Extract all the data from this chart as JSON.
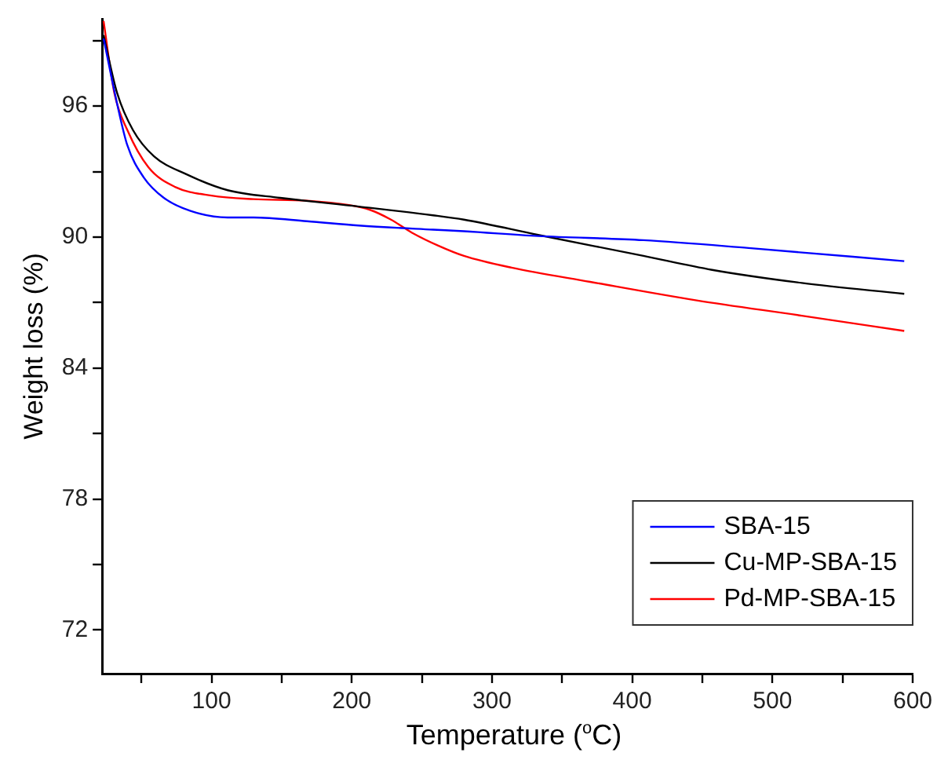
{
  "chart_data": {
    "type": "line",
    "xlabel": "Temperature ($^{o}$C)",
    "ylabel": "Weight loss (%)",
    "xlim": [
      22,
      600
    ],
    "ylim": [
      70,
      100
    ],
    "xticks": [
      {
        "value": 50,
        "label": null
      },
      100,
      {
        "value": 150,
        "label": null
      },
      200,
      {
        "value": 250,
        "label": null
      },
      300,
      {
        "value": 350,
        "label": null
      },
      400,
      {
        "value": 450,
        "label": null
      },
      500,
      {
        "value": 550,
        "label": null
      },
      600
    ],
    "yticks": [
      72,
      {
        "value": 75,
        "label": null
      },
      78,
      {
        "value": 81,
        "label": null
      },
      84,
      {
        "value": 87,
        "label": null
      },
      90,
      {
        "value": 93,
        "label": null
      },
      96,
      {
        "value": 99,
        "label": null
      }
    ],
    "grid": false,
    "legend": "bottom right",
    "marker": "none",
    "line_style": "solid",
    "series": [
      {
        "name": "SBA-15",
        "color": "#0000ff",
        "x": [
          23,
          32.7,
          40,
          51.5,
          66,
          85,
          111.5,
          130,
          168,
          205,
          258,
          280,
          333,
          408,
          483,
          594
        ],
        "values": [
          99.1,
          96.1,
          94.2,
          92.75,
          91.8,
          91.2,
          90.9,
          90.9,
          90.73,
          90.53,
          90.34,
          90.27,
          90.05,
          89.86,
          89.5,
          88.9
        ]
      },
      {
        "name": "Cu-MP-SBA-15",
        "color": "#000000",
        "x": [
          23,
          32.7,
          44,
          59,
          81.4,
          111.5,
          149,
          205,
          258,
          280,
          333,
          408,
          457,
          521,
          594
        ],
        "values": [
          99.25,
          96.6,
          94.9,
          93.7,
          92.9,
          92.15,
          91.8,
          91.4,
          91.0,
          90.8,
          90.1,
          89.14,
          88.5,
          87.9,
          87.4
        ]
      },
      {
        "name": "Pd-MP-SBA-15",
        "color": "#ff0000",
        "x": [
          23,
          30.7,
          40,
          55,
          74,
          100,
          130,
          168,
          198,
          213,
          228,
          243,
          262,
          280,
          314,
          370,
          446,
          521,
          594
        ],
        "values": [
          99.9,
          96.6,
          94.9,
          93.2,
          92.3,
          91.9,
          91.74,
          91.67,
          91.47,
          91.25,
          90.8,
          90.2,
          89.6,
          89.14,
          88.6,
          87.95,
          87.1,
          86.4,
          85.7
        ]
      }
    ]
  }
}
